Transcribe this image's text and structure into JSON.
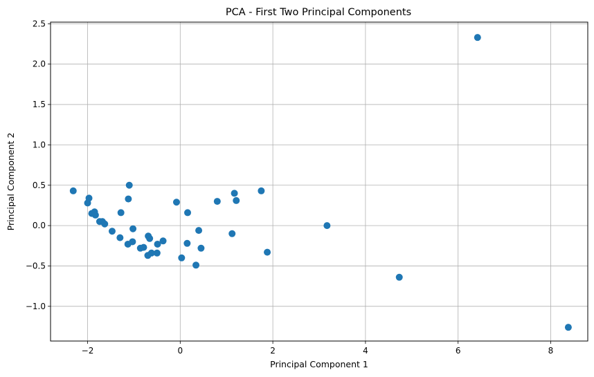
{
  "chart_data": {
    "type": "scatter",
    "title": "PCA - First Two Principal Components",
    "xlabel": "Principal Component 1",
    "ylabel": "Principal Component 2",
    "xlim": [
      -2.8,
      8.8
    ],
    "ylim": [
      -1.43,
      2.52
    ],
    "xticks": [
      -2,
      0,
      2,
      4,
      6,
      8
    ],
    "xtick_labels": [
      "−2",
      "0",
      "2",
      "4",
      "6",
      "8"
    ],
    "yticks": [
      -1.0,
      -0.5,
      0.0,
      0.5,
      1.0,
      1.5,
      2.0,
      2.5
    ],
    "ytick_labels": [
      "−1.0",
      "−0.5",
      "0.0",
      "0.5",
      "1.0",
      "1.5",
      "2.0",
      "2.5"
    ],
    "grid": true,
    "marker_color": "#1f77b4",
    "points": [
      [
        -2.31,
        0.43
      ],
      [
        -2.0,
        0.28
      ],
      [
        -1.97,
        0.34
      ],
      [
        -1.91,
        0.15
      ],
      [
        -1.85,
        0.17
      ],
      [
        -1.83,
        0.13
      ],
      [
        -1.74,
        0.05
      ],
      [
        -1.68,
        0.05
      ],
      [
        -1.63,
        0.02
      ],
      [
        -1.47,
        -0.07
      ],
      [
        -1.3,
        -0.15
      ],
      [
        -1.28,
        0.16
      ],
      [
        -1.13,
        -0.23
      ],
      [
        -1.12,
        0.33
      ],
      [
        -1.1,
        0.5
      ],
      [
        -1.03,
        -0.2
      ],
      [
        -1.02,
        -0.04
      ],
      [
        -0.86,
        -0.28
      ],
      [
        -0.79,
        -0.27
      ],
      [
        -0.7,
        -0.37
      ],
      [
        -0.69,
        -0.13
      ],
      [
        -0.66,
        -0.16
      ],
      [
        -0.62,
        -0.34
      ],
      [
        -0.5,
        -0.34
      ],
      [
        -0.49,
        -0.23
      ],
      [
        -0.37,
        -0.19
      ],
      [
        -0.08,
        0.29
      ],
      [
        0.03,
        -0.4
      ],
      [
        0.15,
        -0.22
      ],
      [
        0.16,
        0.16
      ],
      [
        0.34,
        -0.49
      ],
      [
        0.4,
        -0.06
      ],
      [
        0.45,
        -0.28
      ],
      [
        0.8,
        0.3
      ],
      [
        1.12,
        -0.1
      ],
      [
        1.17,
        0.4
      ],
      [
        1.21,
        0.31
      ],
      [
        1.75,
        0.43
      ],
      [
        1.88,
        -0.33
      ],
      [
        3.17,
        -0.0
      ],
      [
        4.73,
        -0.64
      ],
      [
        6.42,
        2.33
      ],
      [
        8.38,
        -1.26
      ]
    ]
  }
}
